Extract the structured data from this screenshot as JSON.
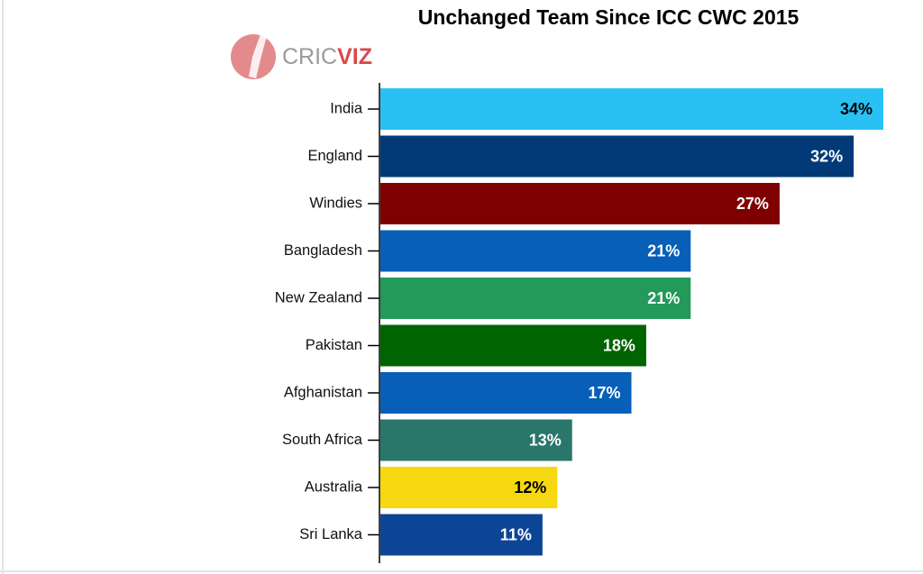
{
  "chart_data": {
    "type": "bar",
    "orientation": "horizontal",
    "title": "Unchanged Team Since ICC CWC 2015",
    "logo_text": [
      "CRIC",
      "VIZ"
    ],
    "categories": [
      "India",
      "England",
      "Windies",
      "Bangladesh",
      "New Zealand",
      "Pakistan",
      "Afghanistan",
      "South Africa",
      "Australia",
      "Sri Lanka"
    ],
    "values": [
      34,
      32,
      27,
      21,
      21,
      18,
      17,
      13,
      12,
      11
    ],
    "value_labels": [
      "34%",
      "32%",
      "27%",
      "21%",
      "21%",
      "18%",
      "17%",
      "13%",
      "12%",
      "11%"
    ],
    "colors": [
      "#29c1f3",
      "#023a78",
      "#7f0000",
      "#075fb8",
      "#23995a",
      "#006400",
      "#075fb8",
      "#29766a",
      "#f5d80f",
      "#0d4596"
    ]
  }
}
